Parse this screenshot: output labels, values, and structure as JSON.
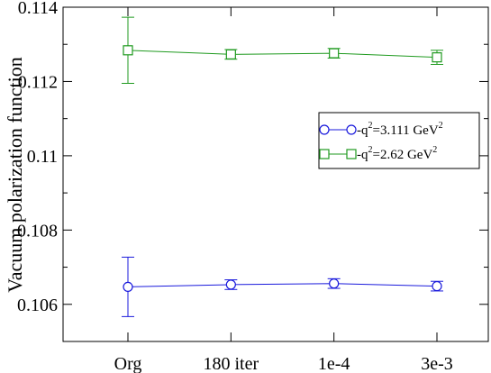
{
  "chart_data": {
    "type": "line",
    "title": "",
    "xlabel": "",
    "ylabel": "Vacuum polarization function",
    "categories": [
      "Org",
      "180 iter",
      "1e-4",
      "3e-3"
    ],
    "ylim": [
      0.105,
      0.114
    ],
    "yticks": [
      0.106,
      0.108,
      0.11,
      0.112,
      0.114
    ],
    "ytick_labels": [
      "0.106",
      "0.108",
      "0.11",
      "0.112",
      "0.114"
    ],
    "grid": false,
    "legend_position": "right",
    "series": [
      {
        "name_prefix": "-q",
        "name_exp": "2",
        "name_mid": "=3.111 GeV",
        "name_exp2": "2",
        "marker": "circle",
        "color": "#1a1adc",
        "values": [
          0.10647,
          0.10653,
          0.10656,
          0.10649
        ],
        "errors": [
          0.0008,
          0.00013,
          0.00013,
          0.00013
        ]
      },
      {
        "name_prefix": "-q",
        "name_exp": "2",
        "name_mid": "=2.62 GeV",
        "name_exp2": "2",
        "marker": "square",
        "color": "#1f9a1f",
        "values": [
          0.11284,
          0.11273,
          0.11276,
          0.11265
        ],
        "errors": [
          0.00089,
          0.00013,
          0.00013,
          0.00019
        ]
      }
    ]
  }
}
